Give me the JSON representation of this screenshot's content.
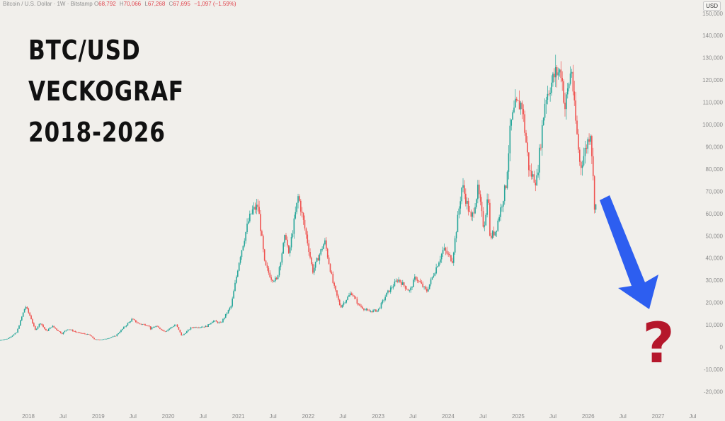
{
  "header": {
    "symbol": "Bitcoin / U.S. Dollar · 1W · Bitstamp",
    "open_label": "O",
    "open": "68,792",
    "high_label": "H",
    "high": "70,066",
    "low_label": "L",
    "low": "67,268",
    "close_label": "C",
    "close": "67,695",
    "change": "−1,097 (−1.59%)"
  },
  "currency": "USD",
  "title_lines": [
    "BTC/USD",
    "VECKOGRAF",
    "2018-2026"
  ],
  "annotation": {
    "arrow_color": "#2d5ef0",
    "question_mark": "?",
    "question_color": "#b5172b"
  },
  "colors": {
    "up": "#26a69a",
    "down": "#ef5350",
    "background": "#f1efeb"
  },
  "chart_data": {
    "type": "candlestick",
    "title": "BTC/USD VECKOGRAF 2018-2026",
    "xlabel": "",
    "ylabel": "",
    "ylim": [
      -20000,
      150000
    ],
    "grid": false,
    "y_ticks": [
      {
        "value": 150000,
        "label": "150,000"
      },
      {
        "value": 140000,
        "label": "140,000"
      },
      {
        "value": 130000,
        "label": "130,000"
      },
      {
        "value": 120000,
        "label": "120,000"
      },
      {
        "value": 110000,
        "label": "110,000"
      },
      {
        "value": 100000,
        "label": "100,000"
      },
      {
        "value": 90000,
        "label": "90,000"
      },
      {
        "value": 80000,
        "label": "80,000"
      },
      {
        "value": 70000,
        "label": "70,000"
      },
      {
        "value": 60000,
        "label": "60,000"
      },
      {
        "value": 50000,
        "label": "50,000"
      },
      {
        "value": 40000,
        "label": "40,000"
      },
      {
        "value": 30000,
        "label": "30,000"
      },
      {
        "value": 20000,
        "label": "20,000"
      },
      {
        "value": 10000,
        "label": "10,000"
      },
      {
        "value": 0,
        "label": "0"
      },
      {
        "value": -10000,
        "label": "-10,000"
      },
      {
        "value": -20000,
        "label": "-20,000"
      }
    ],
    "x_ticks": [
      {
        "date": "2018-01-01",
        "label": "2018"
      },
      {
        "date": "2018-07-01",
        "label": "Jul"
      },
      {
        "date": "2019-01-01",
        "label": "2019"
      },
      {
        "date": "2019-07-01",
        "label": "Jul"
      },
      {
        "date": "2020-01-01",
        "label": "2020"
      },
      {
        "date": "2020-07-01",
        "label": "Jul"
      },
      {
        "date": "2021-01-01",
        "label": "2021"
      },
      {
        "date": "2021-07-01",
        "label": "Jul"
      },
      {
        "date": "2022-01-01",
        "label": "2022"
      },
      {
        "date": "2022-07-01",
        "label": "Jul"
      },
      {
        "date": "2023-01-01",
        "label": "2023"
      },
      {
        "date": "2023-07-01",
        "label": "Jul"
      },
      {
        "date": "2024-01-01",
        "label": "2024"
      },
      {
        "date": "2024-07-01",
        "label": "Jul"
      },
      {
        "date": "2025-01-01",
        "label": "2025"
      },
      {
        "date": "2025-07-01",
        "label": "Jul"
      },
      {
        "date": "2026-01-01",
        "label": "2026"
      },
      {
        "date": "2026-07-01",
        "label": "Jul"
      },
      {
        "date": "2027-01-01",
        "label": "2027"
      },
      {
        "date": "2027-07-01",
        "label": "Jul"
      }
    ],
    "x_range": [
      "2017-08-01",
      "2027-09-15"
    ],
    "price_path": [
      {
        "date": "2017-08-01",
        "price": 3000
      },
      {
        "date": "2017-09-15",
        "price": 3800
      },
      {
        "date": "2017-11-01",
        "price": 6500
      },
      {
        "date": "2017-12-17",
        "price": 18500
      },
      {
        "date": "2018-01-15",
        "price": 13000
      },
      {
        "date": "2018-02-05",
        "price": 7500
      },
      {
        "date": "2018-03-05",
        "price": 11000
      },
      {
        "date": "2018-04-05",
        "price": 7000
      },
      {
        "date": "2018-05-05",
        "price": 9500
      },
      {
        "date": "2018-06-25",
        "price": 6000
      },
      {
        "date": "2018-07-25",
        "price": 8200
      },
      {
        "date": "2018-09-15",
        "price": 6500
      },
      {
        "date": "2018-11-15",
        "price": 5500
      },
      {
        "date": "2018-12-15",
        "price": 3300
      },
      {
        "date": "2019-02-01",
        "price": 3500
      },
      {
        "date": "2019-04-01",
        "price": 5000
      },
      {
        "date": "2019-06-26",
        "price": 12500
      },
      {
        "date": "2019-08-01",
        "price": 10500
      },
      {
        "date": "2019-09-20",
        "price": 9800
      },
      {
        "date": "2019-10-01",
        "price": 8200
      },
      {
        "date": "2019-10-28",
        "price": 9400
      },
      {
        "date": "2019-12-15",
        "price": 7000
      },
      {
        "date": "2020-02-10",
        "price": 10200
      },
      {
        "date": "2020-03-12",
        "price": 5000
      },
      {
        "date": "2020-05-01",
        "price": 8800
      },
      {
        "date": "2020-07-20",
        "price": 9300
      },
      {
        "date": "2020-08-20",
        "price": 11800
      },
      {
        "date": "2020-10-01",
        "price": 10700
      },
      {
        "date": "2020-11-25",
        "price": 18500
      },
      {
        "date": "2021-01-08",
        "price": 40000
      },
      {
        "date": "2021-02-21",
        "price": 56000
      },
      {
        "date": "2021-03-13",
        "price": 61000
      },
      {
        "date": "2021-04-14",
        "price": 63500
      },
      {
        "date": "2021-05-19",
        "price": 37000
      },
      {
        "date": "2021-06-22",
        "price": 31000
      },
      {
        "date": "2021-07-20",
        "price": 30000
      },
      {
        "date": "2021-09-05",
        "price": 51000
      },
      {
        "date": "2021-09-21",
        "price": 41000
      },
      {
        "date": "2021-11-10",
        "price": 68000
      },
      {
        "date": "2021-12-31",
        "price": 46000
      },
      {
        "date": "2022-01-24",
        "price": 34000
      },
      {
        "date": "2022-03-28",
        "price": 47500
      },
      {
        "date": "2022-05-12",
        "price": 28000
      },
      {
        "date": "2022-06-18",
        "price": 18000
      },
      {
        "date": "2022-08-14",
        "price": 24500
      },
      {
        "date": "2022-09-20",
        "price": 19000
      },
      {
        "date": "2022-11-09",
        "price": 16000
      },
      {
        "date": "2022-12-31",
        "price": 16500
      },
      {
        "date": "2023-02-15",
        "price": 24000
      },
      {
        "date": "2023-04-14",
        "price": 30500
      },
      {
        "date": "2023-06-15",
        "price": 25000
      },
      {
        "date": "2023-07-14",
        "price": 31500
      },
      {
        "date": "2023-09-11",
        "price": 25000
      },
      {
        "date": "2023-10-25",
        "price": 34500
      },
      {
        "date": "2023-12-08",
        "price": 44000
      },
      {
        "date": "2024-01-23",
        "price": 39000
      },
      {
        "date": "2024-03-14",
        "price": 73000
      },
      {
        "date": "2024-05-01",
        "price": 57000
      },
      {
        "date": "2024-06-05",
        "price": 71000
      },
      {
        "date": "2024-07-05",
        "price": 53500
      },
      {
        "date": "2024-07-29",
        "price": 70000
      },
      {
        "date": "2024-08-05",
        "price": 49000
      },
      {
        "date": "2024-09-06",
        "price": 52500
      },
      {
        "date": "2024-10-29",
        "price": 73000
      },
      {
        "date": "2024-11-22",
        "price": 99500
      },
      {
        "date": "2024-12-17",
        "price": 108000
      },
      {
        "date": "2025-01-20",
        "price": 109500
      },
      {
        "date": "2025-02-28",
        "price": 78500
      },
      {
        "date": "2025-04-07",
        "price": 74500
      },
      {
        "date": "2025-05-22",
        "price": 111900
      },
      {
        "date": "2025-07-14",
        "price": 123000
      },
      {
        "date": "2025-08-14",
        "price": 124000
      },
      {
        "date": "2025-09-01",
        "price": 107000
      },
      {
        "date": "2025-10-06",
        "price": 126000
      },
      {
        "date": "2025-10-20",
        "price": 108000
      },
      {
        "date": "2025-11-21",
        "price": 80500
      },
      {
        "date": "2025-12-15",
        "price": 88000
      },
      {
        "date": "2026-01-14",
        "price": 97500
      },
      {
        "date": "2026-02-05",
        "price": 60500
      },
      {
        "date": "2026-02-16",
        "price": 67695
      }
    ]
  }
}
